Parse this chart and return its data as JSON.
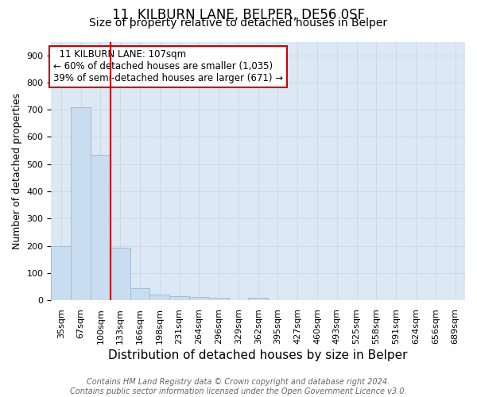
{
  "title1": "11, KILBURN LANE, BELPER, DE56 0SF",
  "title2": "Size of property relative to detached houses in Belper",
  "xlabel": "Distribution of detached houses by size in Belper",
  "ylabel": "Number of detached properties",
  "categories": [
    "35sqm",
    "67sqm",
    "100sqm",
    "133sqm",
    "166sqm",
    "198sqm",
    "231sqm",
    "264sqm",
    "296sqm",
    "329sqm",
    "362sqm",
    "395sqm",
    "427sqm",
    "460sqm",
    "493sqm",
    "525sqm",
    "558sqm",
    "591sqm",
    "624sqm",
    "656sqm",
    "689sqm"
  ],
  "values": [
    200,
    710,
    535,
    193,
    45,
    20,
    15,
    12,
    9,
    0,
    8,
    0,
    0,
    0,
    0,
    0,
    0,
    0,
    0,
    0,
    0
  ],
  "bar_color": "#c9ddf0",
  "bar_edge_color": "#a0bdd8",
  "vline_x": 2.5,
  "vline_color": "#cc0000",
  "annotation_text": "  11 KILBURN LANE: 107sqm\n← 60% of detached houses are smaller (1,035)\n39% of semi-detached houses are larger (671) →",
  "annotation_box_color": "white",
  "annotation_box_edge": "#cc0000",
  "ylim": [
    0,
    950
  ],
  "yticks": [
    0,
    100,
    200,
    300,
    400,
    500,
    600,
    700,
    800,
    900
  ],
  "footnote": "Contains HM Land Registry data © Crown copyright and database right 2024.\nContains public sector information licensed under the Open Government Licence v3.0.",
  "title1_fontsize": 12,
  "title2_fontsize": 10,
  "xlabel_fontsize": 11,
  "ylabel_fontsize": 9,
  "tick_fontsize": 8,
  "footnote_fontsize": 7,
  "grid_color": "#d0d8e8",
  "background_color": "#dde8f5"
}
